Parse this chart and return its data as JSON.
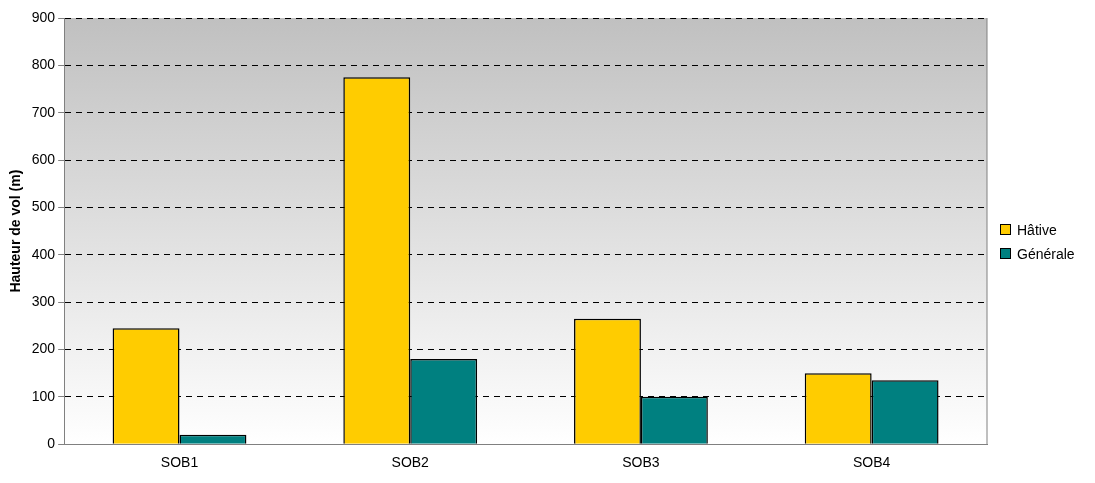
{
  "chart_data": {
    "type": "bar",
    "ylabel": "Hauteur de vol (m)",
    "categories": [
      "SOB1",
      "SOB2",
      "SOB3",
      "SOB4"
    ],
    "series": [
      {
        "name": "Hâtive",
        "color": "#ffcc00",
        "values": [
          245,
          775,
          265,
          150
        ]
      },
      {
        "name": "Générale",
        "color": "#008080",
        "values": [
          20,
          180,
          100,
          135
        ]
      }
    ],
    "ylim": [
      0,
      900
    ],
    "yticks": [
      0,
      100,
      200,
      300,
      400,
      500,
      600,
      700,
      800,
      900
    ],
    "grid": "y",
    "legend": "right"
  }
}
